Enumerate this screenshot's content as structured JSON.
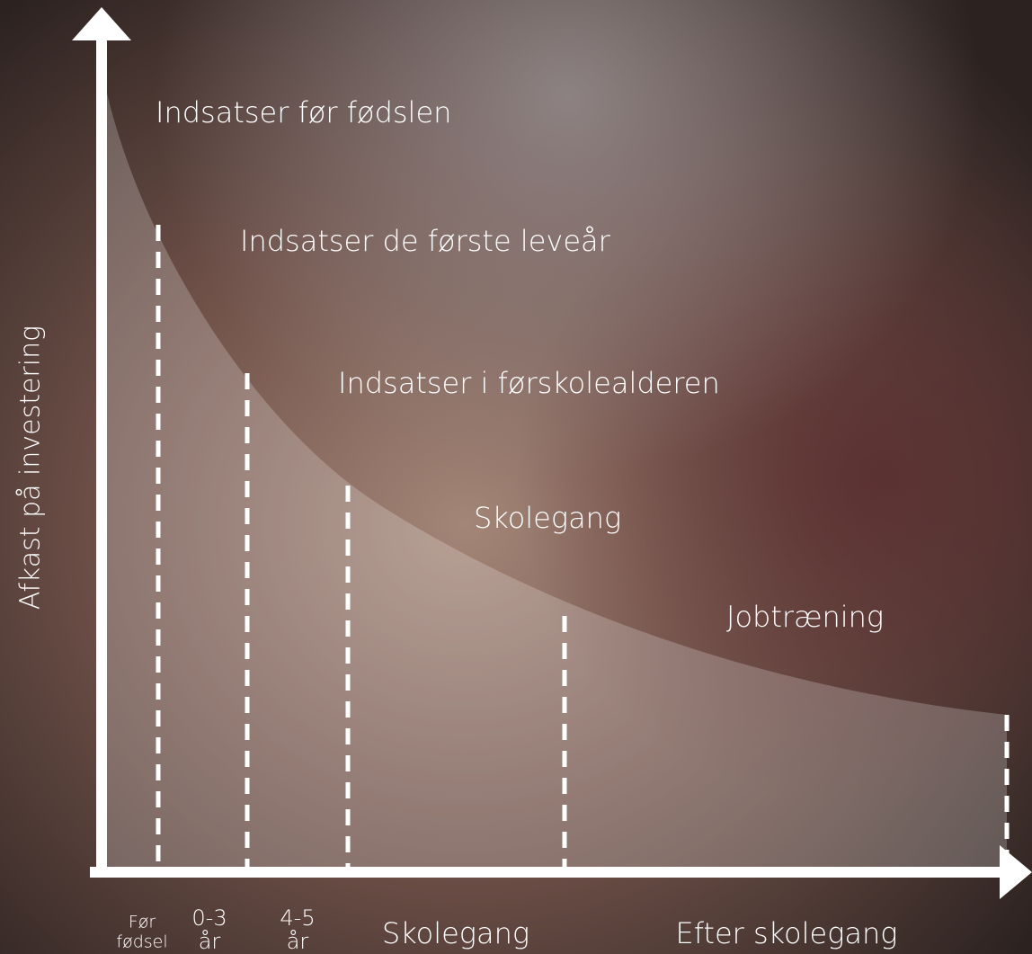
{
  "y_axis_label": "Afkast på investering",
  "stages": [
    "Indsatser før fødslen",
    "Indsatser de første leveår",
    "Indsatser i førskolealderen",
    "Skolegang",
    "Jobtræning"
  ],
  "x_labels": [
    [
      "Før",
      "fødsel"
    ],
    [
      "0-3",
      "år"
    ],
    [
      "4-5",
      "år"
    ],
    [
      "Skolegang"
    ],
    [
      "Efter skolegang"
    ]
  ]
}
